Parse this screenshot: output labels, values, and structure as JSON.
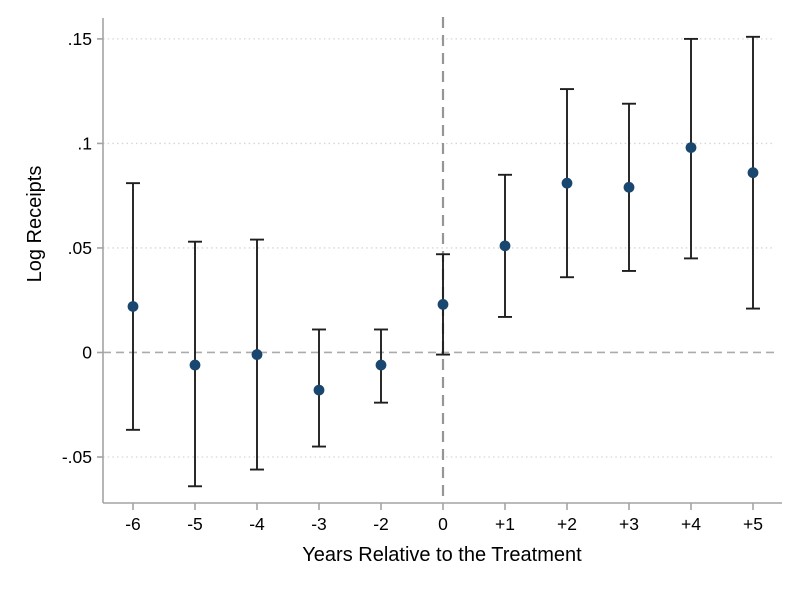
{
  "chart_data": {
    "type": "scatter",
    "subtype": "event-study coefficient plot with confidence intervals",
    "title": "",
    "xlabel": "Years Relative to the Treatment",
    "ylabel": "Log Receipts",
    "categories": [
      "-6",
      "-5",
      "-4",
      "-3",
      "-2",
      "0",
      "+1",
      "+2",
      "+3",
      "+4",
      "+5"
    ],
    "series": [
      {
        "name": "Point estimates",
        "values": [
          0.022,
          -0.006,
          -0.001,
          -0.018,
          -0.006,
          0.023,
          0.051,
          0.081,
          0.079,
          0.098,
          0.086
        ],
        "ci_low": [
          -0.037,
          -0.064,
          -0.056,
          -0.045,
          -0.024,
          -0.001,
          0.017,
          0.036,
          0.039,
          0.045,
          0.021
        ],
        "ci_high": [
          0.081,
          0.053,
          0.054,
          0.011,
          0.011,
          0.047,
          0.085,
          0.126,
          0.119,
          0.15,
          0.151
        ]
      }
    ],
    "y_ticks": [
      {
        "value": 0.15,
        "label": ".15"
      },
      {
        "value": 0.1,
        "label": ".1"
      },
      {
        "value": 0.05,
        "label": ".05"
      },
      {
        "value": 0.0,
        "label": "0"
      },
      {
        "value": -0.05,
        "label": "-.05"
      }
    ],
    "ylim": [
      -0.072,
      0.16
    ],
    "grid": "horizontal dotted gridlines at y ticks",
    "legend": "none",
    "reference_lines": {
      "horizontal_at_value": 0,
      "vertical_at_category": "0"
    },
    "colors": {
      "point": "#1a476f",
      "ci": "#1f1f1f",
      "axis": "#a3a3a3",
      "grid": "#d6d6d6",
      "zero_line": "#ababab",
      "treatment_line": "#969696",
      "text": "#000000"
    }
  }
}
